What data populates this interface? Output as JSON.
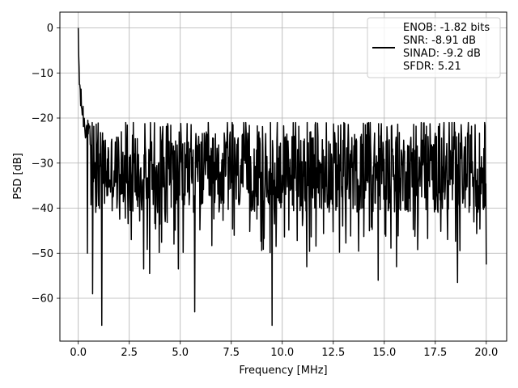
{
  "chart_data": {
    "type": "line",
    "title": "",
    "xlabel": "Frequency [MHz]",
    "ylabel": "PSD [dB]",
    "xlim": [
      -0.9,
      21.0
    ],
    "ylim": [
      -69.5,
      3.5
    ],
    "xticks": [
      0.0,
      2.5,
      5.0,
      7.5,
      10.0,
      12.5,
      15.0,
      17.5,
      20.0
    ],
    "xtick_labels": [
      "0.0",
      "2.5",
      "5.0",
      "7.5",
      "10.0",
      "12.5",
      "15.0",
      "17.5",
      "20.0"
    ],
    "yticks": [
      0,
      -10,
      -20,
      -30,
      -40,
      -50,
      -60
    ],
    "ytick_labels": [
      "0",
      "−10",
      "−20",
      "−30",
      "−40",
      "−50",
      "−60"
    ],
    "grid": true,
    "legend_position": "top-right",
    "series": [
      {
        "name": "ENOB: -1.82 bits\nSNR: -8.91 dB\nSINAD: -9.2 dB\nSFDR: 5.21",
        "color": "#000000",
        "x_start": 0.0,
        "x_end": 20.0,
        "points": 1024,
        "peak": {
          "x": 0.0,
          "y": 0.0
        },
        "decay": [
          {
            "x": 0.0,
            "y": 0.0
          },
          {
            "x": 0.02,
            "y": -6
          },
          {
            "x": 0.06,
            "y": -12
          },
          {
            "x": 0.12,
            "y": -16
          },
          {
            "x": 0.3,
            "y": -21
          },
          {
            "x": 0.6,
            "y": -25
          }
        ],
        "noise_floor_mean": -32,
        "noise_band": [
          -42,
          -21
        ],
        "deep_dips": [
          {
            "x": 0.45,
            "y": -50
          },
          {
            "x": 0.7,
            "y": -59
          },
          {
            "x": 1.15,
            "y": -66
          },
          {
            "x": 3.2,
            "y": -53.5
          },
          {
            "x": 3.5,
            "y": -54.5
          },
          {
            "x": 4.9,
            "y": -53.5
          },
          {
            "x": 5.7,
            "y": -63
          },
          {
            "x": 9.5,
            "y": -66
          },
          {
            "x": 11.2,
            "y": -53
          },
          {
            "x": 14.7,
            "y": -56
          },
          {
            "x": 15.6,
            "y": -53
          },
          {
            "x": 18.6,
            "y": -56.5
          },
          {
            "x": 20.0,
            "y": -52.5
          }
        ]
      }
    ]
  }
}
